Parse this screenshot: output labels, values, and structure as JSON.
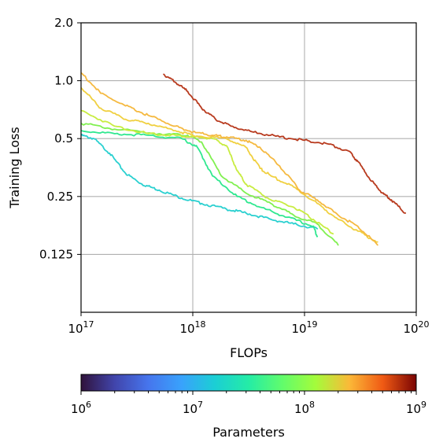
{
  "chart_data": {
    "type": "line",
    "xlabel": "FLOPs",
    "ylabel": "Training Loss",
    "xscale": "log",
    "yscale": "log",
    "xlim": [
      1e+17,
      1e+20
    ],
    "ylim": [
      0.0625,
      2.0
    ],
    "grid": true,
    "x_ticks": [
      {
        "value": 1e+17,
        "base": "10",
        "exp": "17"
      },
      {
        "value": 1e+18,
        "base": "10",
        "exp": "18"
      },
      {
        "value": 1e+19,
        "base": "10",
        "exp": "19"
      },
      {
        "value": 1e+20,
        "base": "10",
        "exp": "20"
      }
    ],
    "y_ticks": [
      {
        "value": 2.0,
        "label": "2.0"
      },
      {
        "value": 1.0,
        "label": "1.0"
      },
      {
        "value": 0.5,
        "label": "0.5"
      },
      {
        "value": 0.25,
        "label": "0.25"
      },
      {
        "value": 0.125,
        "label": "0.125"
      }
    ],
    "colorbar": {
      "label": "Parameters",
      "scale": "log",
      "range": [
        1000000.0,
        1000000000.0
      ],
      "colormap": "turbo",
      "ticks": [
        {
          "value": 1000000.0,
          "base": "10",
          "exp": "6"
        },
        {
          "value": 10000000.0,
          "base": "10",
          "exp": "7"
        },
        {
          "value": 100000000.0,
          "base": "10",
          "exp": "8"
        },
        {
          "value": 1000000000.0,
          "base": "10",
          "exp": "9"
        }
      ]
    },
    "series": [
      {
        "color": "#2ad0d0",
        "x": [
          1e+17,
          1.3e+17,
          1.8e+17,
          2.5e+17,
          3.5e+17,
          5e+17,
          8e+17,
          1.2e+18,
          2e+18,
          3e+18,
          5e+18,
          8e+18,
          1.3e+19
        ],
        "y": [
          0.52,
          0.5,
          0.42,
          0.33,
          0.29,
          0.27,
          0.245,
          0.23,
          0.215,
          0.205,
          0.19,
          0.18,
          0.17
        ]
      },
      {
        "color": "#30e890",
        "x": [
          1e+17,
          2e+17,
          4e+17,
          8e+17,
          1.1e+18,
          1.5e+18,
          2.5e+18,
          4e+18,
          7e+18,
          1.2e+19,
          1.3e+19
        ],
        "y": [
          0.55,
          0.53,
          0.52,
          0.5,
          0.45,
          0.32,
          0.25,
          0.22,
          0.195,
          0.175,
          0.155
        ]
      },
      {
        "color": "#80f050",
        "x": [
          1e+17,
          2e+17,
          5e+17,
          9e+17,
          1.2e+18,
          1.8e+18,
          3e+18,
          5e+18,
          8e+18,
          1.3e+19,
          2e+19
        ],
        "y": [
          0.6,
          0.56,
          0.53,
          0.52,
          0.48,
          0.32,
          0.26,
          0.23,
          0.2,
          0.18,
          0.14
        ]
      },
      {
        "color": "#c8ec40",
        "x": [
          1e+17,
          2e+17,
          4e+17,
          7e+17,
          1e+18,
          1.5e+18,
          2e+18,
          2.5e+18,
          3e+18,
          5e+18,
          8e+18,
          1.2e+19,
          1.8e+19
        ],
        "y": [
          0.7,
          0.58,
          0.53,
          0.52,
          0.51,
          0.5,
          0.46,
          0.34,
          0.29,
          0.24,
          0.22,
          0.19,
          0.16
        ]
      },
      {
        "color": "#f0d040",
        "x": [
          1e+17,
          1.5e+17,
          2.5e+17,
          4e+17,
          7e+17,
          1e+18,
          2e+18,
          3e+18,
          4e+18,
          5e+18,
          8e+18,
          1.3e+19,
          2e+19,
          3e+19,
          4.5e+19
        ],
        "y": [
          0.92,
          0.72,
          0.63,
          0.6,
          0.55,
          0.52,
          0.5,
          0.45,
          0.35,
          0.32,
          0.28,
          0.23,
          0.19,
          0.165,
          0.145
        ]
      },
      {
        "color": "#f5b940",
        "x": [
          1e+17,
          1.5e+17,
          2.5e+17,
          4e+17,
          7e+17,
          1e+18,
          1.5e+18,
          2e+18,
          3e+18,
          4e+18,
          6e+18,
          9e+18,
          1.3e+19,
          2e+19,
          3e+19,
          4.5e+19
        ],
        "y": [
          1.1,
          0.86,
          0.74,
          0.66,
          0.58,
          0.54,
          0.52,
          0.51,
          0.49,
          0.45,
          0.36,
          0.27,
          0.24,
          0.2,
          0.175,
          0.14
        ]
      },
      {
        "color": "#b83a1e",
        "x": [
          5.5e+17,
          7e+17,
          9e+17,
          1.2e+18,
          1.6e+18,
          2.2e+18,
          3.5e+18,
          6e+18,
          1e+19,
          1.6e+19,
          2.5e+19,
          3e+19,
          4e+19,
          5e+19,
          6e+19,
          8e+19
        ],
        "y": [
          1.08,
          0.98,
          0.88,
          0.72,
          0.63,
          0.58,
          0.54,
          0.51,
          0.49,
          0.47,
          0.43,
          0.38,
          0.3,
          0.26,
          0.24,
          0.205
        ]
      }
    ]
  }
}
